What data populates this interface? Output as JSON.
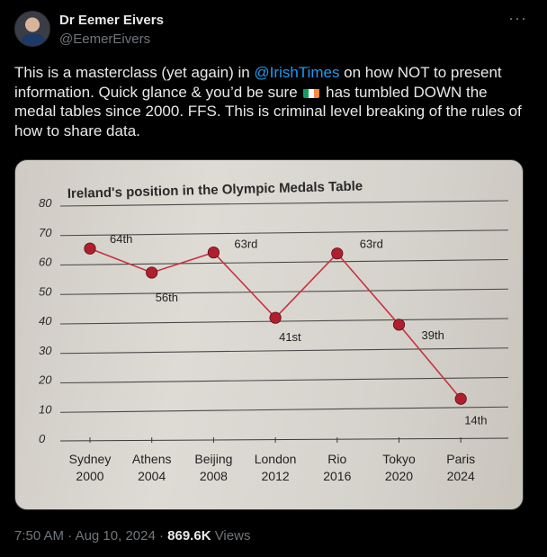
{
  "author": {
    "name": "Dr Eemer Eivers",
    "handle": "@EemerEivers"
  },
  "tweet": {
    "text_1": "This is a masterclass (yet again) in ",
    "mention": "@IrishTimes",
    "text_2": " on how NOT to present information. Quick glance & you’d be sure ",
    "text_3": " has tumbled DOWN the medal tables since 2000. FFS. This is criminal level breaking of the rules of how to share data.",
    "flag_icon": "ireland-flag-icon",
    "flag_colors": [
      "#169b62",
      "#ffffff",
      "#ff883e"
    ]
  },
  "more_icon": "more-dots-icon",
  "footer": {
    "time": "7:50 AM",
    "date": "Aug 10, 2024",
    "views_count": "869.6K",
    "views_label": "Views"
  },
  "chart_data": {
    "type": "line",
    "title": "Ireland's position in the Olympic Medals Table",
    "categories": [
      "Sydney|2000",
      "Athens|2004",
      "Beijing|2008",
      "London|2012",
      "Rio|2016",
      "Tokyo|2020",
      "Paris|2024"
    ],
    "values": [
      64,
      56,
      63,
      41,
      63,
      39,
      14
    ],
    "point_labels": [
      "64th",
      "56th",
      "63rd",
      "41st",
      "63rd",
      "39th",
      "14th"
    ],
    "yticks": [
      0,
      10,
      20,
      30,
      40,
      50,
      60,
      70,
      80
    ],
    "ylim": [
      0,
      80
    ],
    "grid": true,
    "line_color": "#c8323f",
    "marker_color": "#b01f2e"
  }
}
